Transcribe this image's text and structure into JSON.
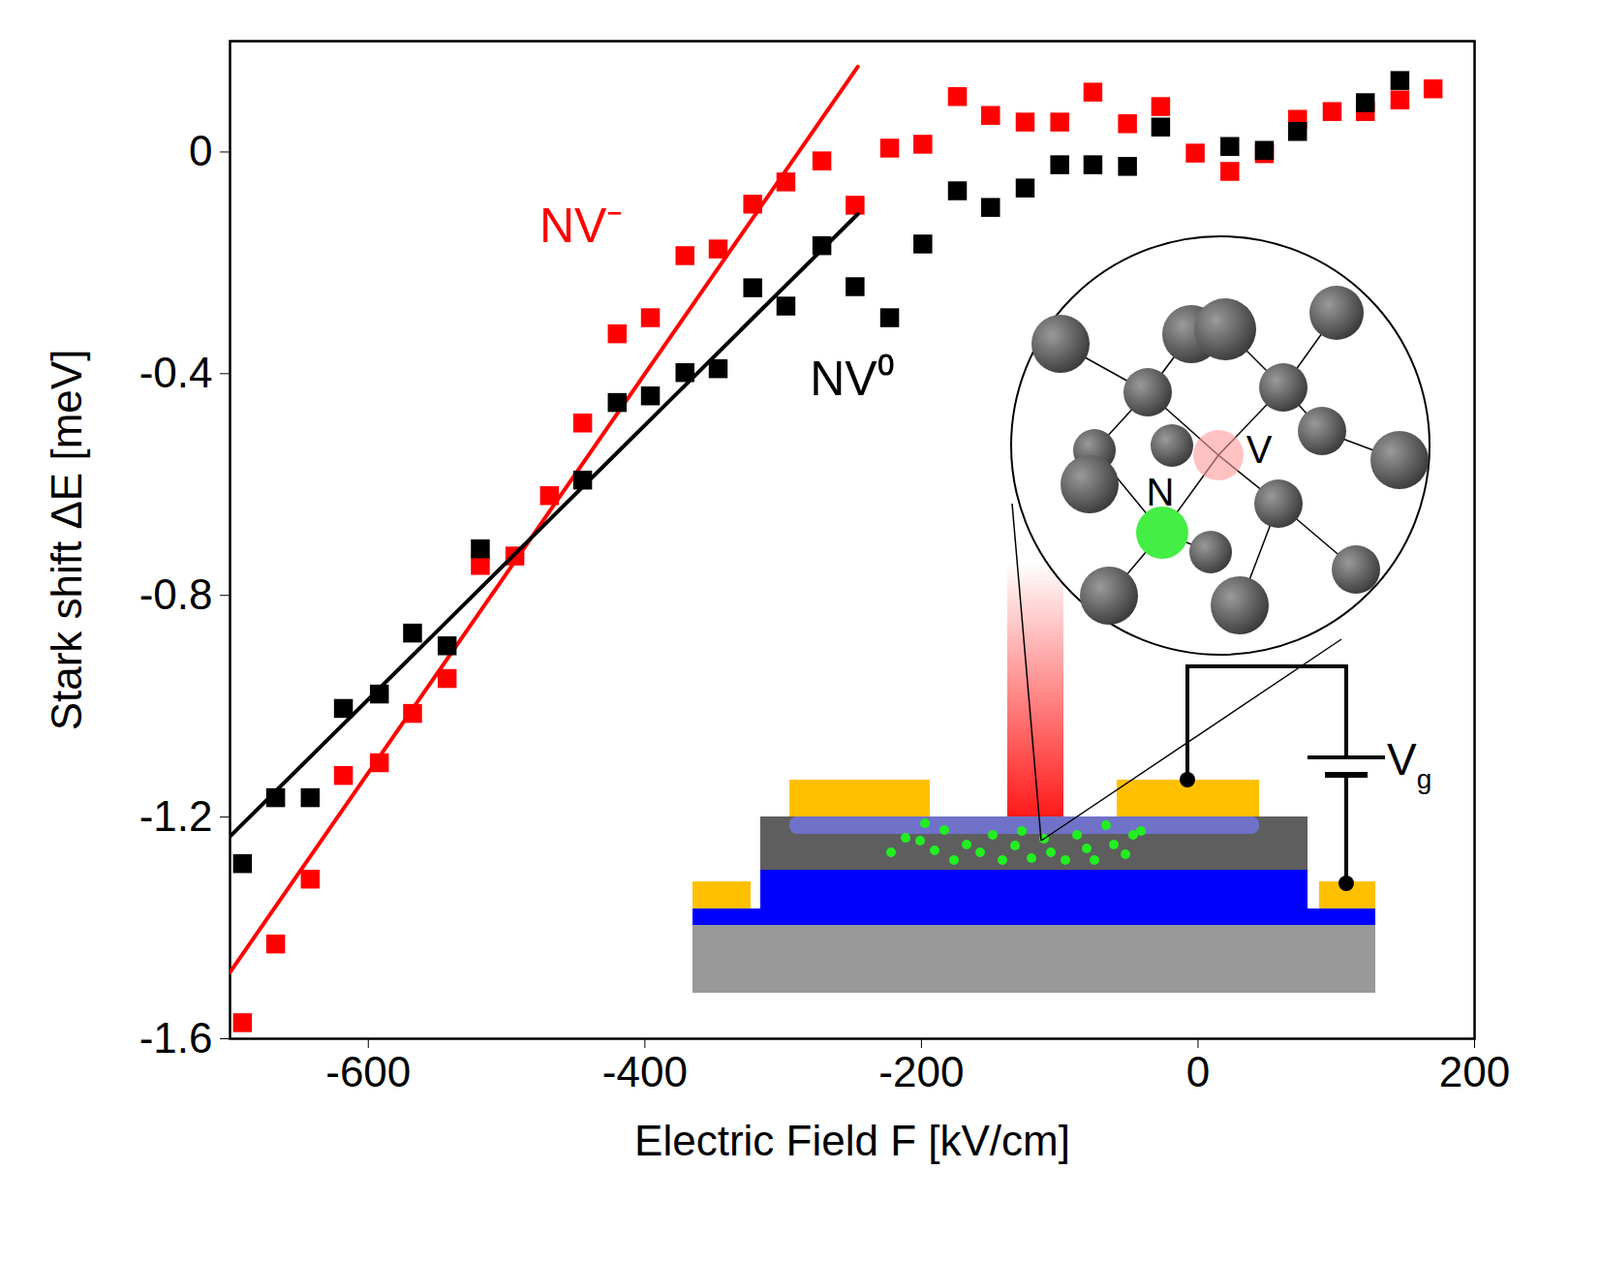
{
  "chart_data": {
    "type": "scatter",
    "x_label": "Electric Field F [kV/cm]",
    "y_label": "Stark shift ΔE [meV]",
    "xlim": [
      -700,
      200
    ],
    "xticks": [
      -600,
      -400,
      -200,
      0,
      200
    ],
    "ylim": [
      -1.6,
      0.2
    ],
    "yticks": [
      -1.6,
      -1.2,
      -0.8,
      -0.4,
      0
    ],
    "grid": false,
    "series": [
      {
        "name": "NV⁻",
        "color": "#ff0000",
        "marker": "square",
        "x": [
          -691,
          -667,
          -642,
          -618,
          -592,
          -568,
          -543,
          -519,
          -494,
          -469,
          -445,
          -420,
          -396,
          -371,
          -347,
          -322,
          -298,
          -272,
          -248,
          -223,
          -199,
          -174,
          -150,
          -125,
          -100,
          -76,
          -51,
          -27,
          -2,
          23,
          48,
          72,
          97,
          121,
          146,
          170
        ],
        "values": [
          -1.571,
          -1.429,
          -1.312,
          -1.125,
          -1.102,
          -1.013,
          -0.95,
          -0.746,
          -0.729,
          -0.62,
          -0.489,
          -0.328,
          -0.299,
          -0.187,
          -0.175,
          -0.094,
          -0.054,
          -0.016,
          -0.096,
          0.007,
          0.014,
          0.1,
          0.066,
          0.054,
          0.054,
          0.108,
          0.051,
          0.082,
          -0.002,
          -0.035,
          -0.003,
          0.059,
          0.073,
          0.073,
          0.094,
          0.114
        ],
        "fit": {
          "x": [
            -700,
            -246
          ],
          "values": [
            -1.48,
            0.154
          ]
        }
      },
      {
        "name": "NV⁰",
        "color": "#000000",
        "marker": "square",
        "x": [
          -691,
          -667,
          -642,
          -618,
          -592,
          -568,
          -543,
          -519,
          -445,
          -420,
          -396,
          -371,
          -347,
          -322,
          -298,
          -272,
          -248,
          -223,
          -199,
          -174,
          -150,
          -125,
          -100,
          -76,
          -51,
          -27,
          23,
          48,
          72,
          121,
          146
        ],
        "values": [
          -1.284,
          -1.165,
          -1.165,
          -1.004,
          -0.978,
          -0.868,
          -0.891,
          -0.716,
          -0.592,
          -0.452,
          -0.44,
          -0.398,
          -0.391,
          -0.245,
          -0.278,
          -0.169,
          -0.243,
          -0.299,
          -0.166,
          -0.07,
          -0.1,
          -0.065,
          -0.023,
          -0.023,
          -0.026,
          0.045,
          0.01,
          0.003,
          0.037,
          0.089,
          0.129
        ],
        "fit": {
          "x": [
            -700,
            -246
          ],
          "values": [
            -1.235,
            -0.112
          ]
        }
      }
    ],
    "annotations": [
      {
        "text": "NV⁻",
        "x": -446,
        "y": -0.135,
        "color": "#ff0000"
      },
      {
        "text": "NV⁰",
        "x": -250,
        "y": -0.41,
        "color": "#000000"
      },
      {
        "text": "N",
        "color": "#000000"
      },
      {
        "text": "V",
        "color": "#000000"
      },
      {
        "text": "Vg",
        "color": "#000000"
      }
    ]
  }
}
